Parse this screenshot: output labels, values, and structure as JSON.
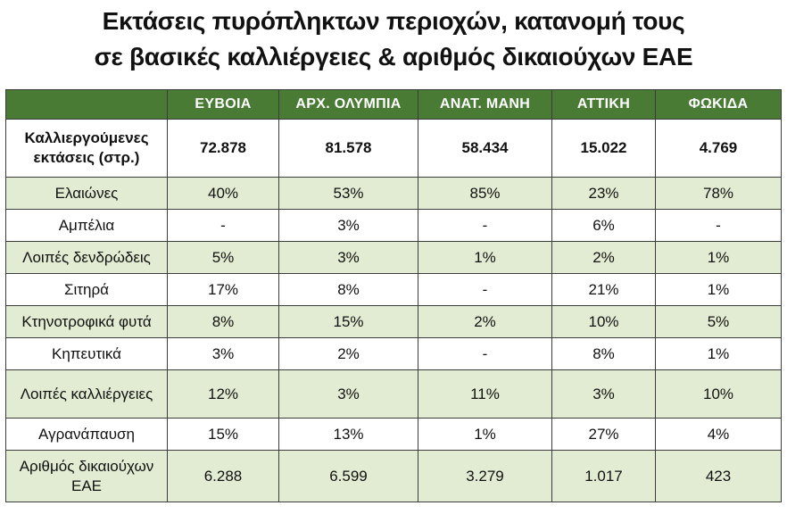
{
  "title": {
    "line1": "Εκτάσεις πυρόπληκτων περιοχών, κατανομή τους",
    "line2": "σε βασικές καλλιέργειες & αριθμός δικαιούχων ΕΑΕ"
  },
  "table": {
    "corner": "",
    "headers": [
      "ΕΥΒΟΙΑ",
      "ΑΡΧ. ΟΛΥΜΠΙΑ",
      "ΑΝΑΤ. ΜΑΝΗ",
      "ΑΤΤΙΚΗ",
      "ΦΩΚΙΔΑ"
    ],
    "rows": [
      {
        "label": "Καλλιεργούμενες εκτάσεις (στρ.)",
        "values": [
          "72.878",
          "81.578",
          "58.434",
          "15.022",
          "4.769"
        ]
      },
      {
        "label": "Ελαιώνες",
        "values": [
          "40%",
          "53%",
          "85%",
          "23%",
          "78%"
        ]
      },
      {
        "label": "Αμπέλια",
        "values": [
          "-",
          "3%",
          "-",
          "6%",
          "-"
        ]
      },
      {
        "label": "Λοιπές δενδρώδεις",
        "values": [
          "5%",
          "3%",
          "1%",
          "2%",
          "1%"
        ]
      },
      {
        "label": "Σιτηρά",
        "values": [
          "17%",
          "8%",
          "-",
          "21%",
          "1%"
        ]
      },
      {
        "label": "Κτηνοτροφικά φυτά",
        "values": [
          "8%",
          "15%",
          "2%",
          "10%",
          "5%"
        ]
      },
      {
        "label": "Κηπευτικά",
        "values": [
          "3%",
          "2%",
          "-",
          "8%",
          "1%"
        ]
      },
      {
        "label": "Λοιπές καλλιέργειες",
        "values": [
          "12%",
          "3%",
          "11%",
          "3%",
          "10%"
        ]
      },
      {
        "label": "Αγρανάπαυση",
        "values": [
          "15%",
          "13%",
          "1%",
          "27%",
          "4%"
        ]
      },
      {
        "label": "Αριθμός δικαιούχων ΕΑΕ",
        "values": [
          "6.288",
          "6.599",
          "3.279",
          "1.017",
          "423"
        ]
      }
    ]
  },
  "colors": {
    "header_bg": "#4a7b35",
    "header_text": "#ffffff",
    "shaded_row": "#e2ecd2",
    "border": "#3c3c3c"
  }
}
